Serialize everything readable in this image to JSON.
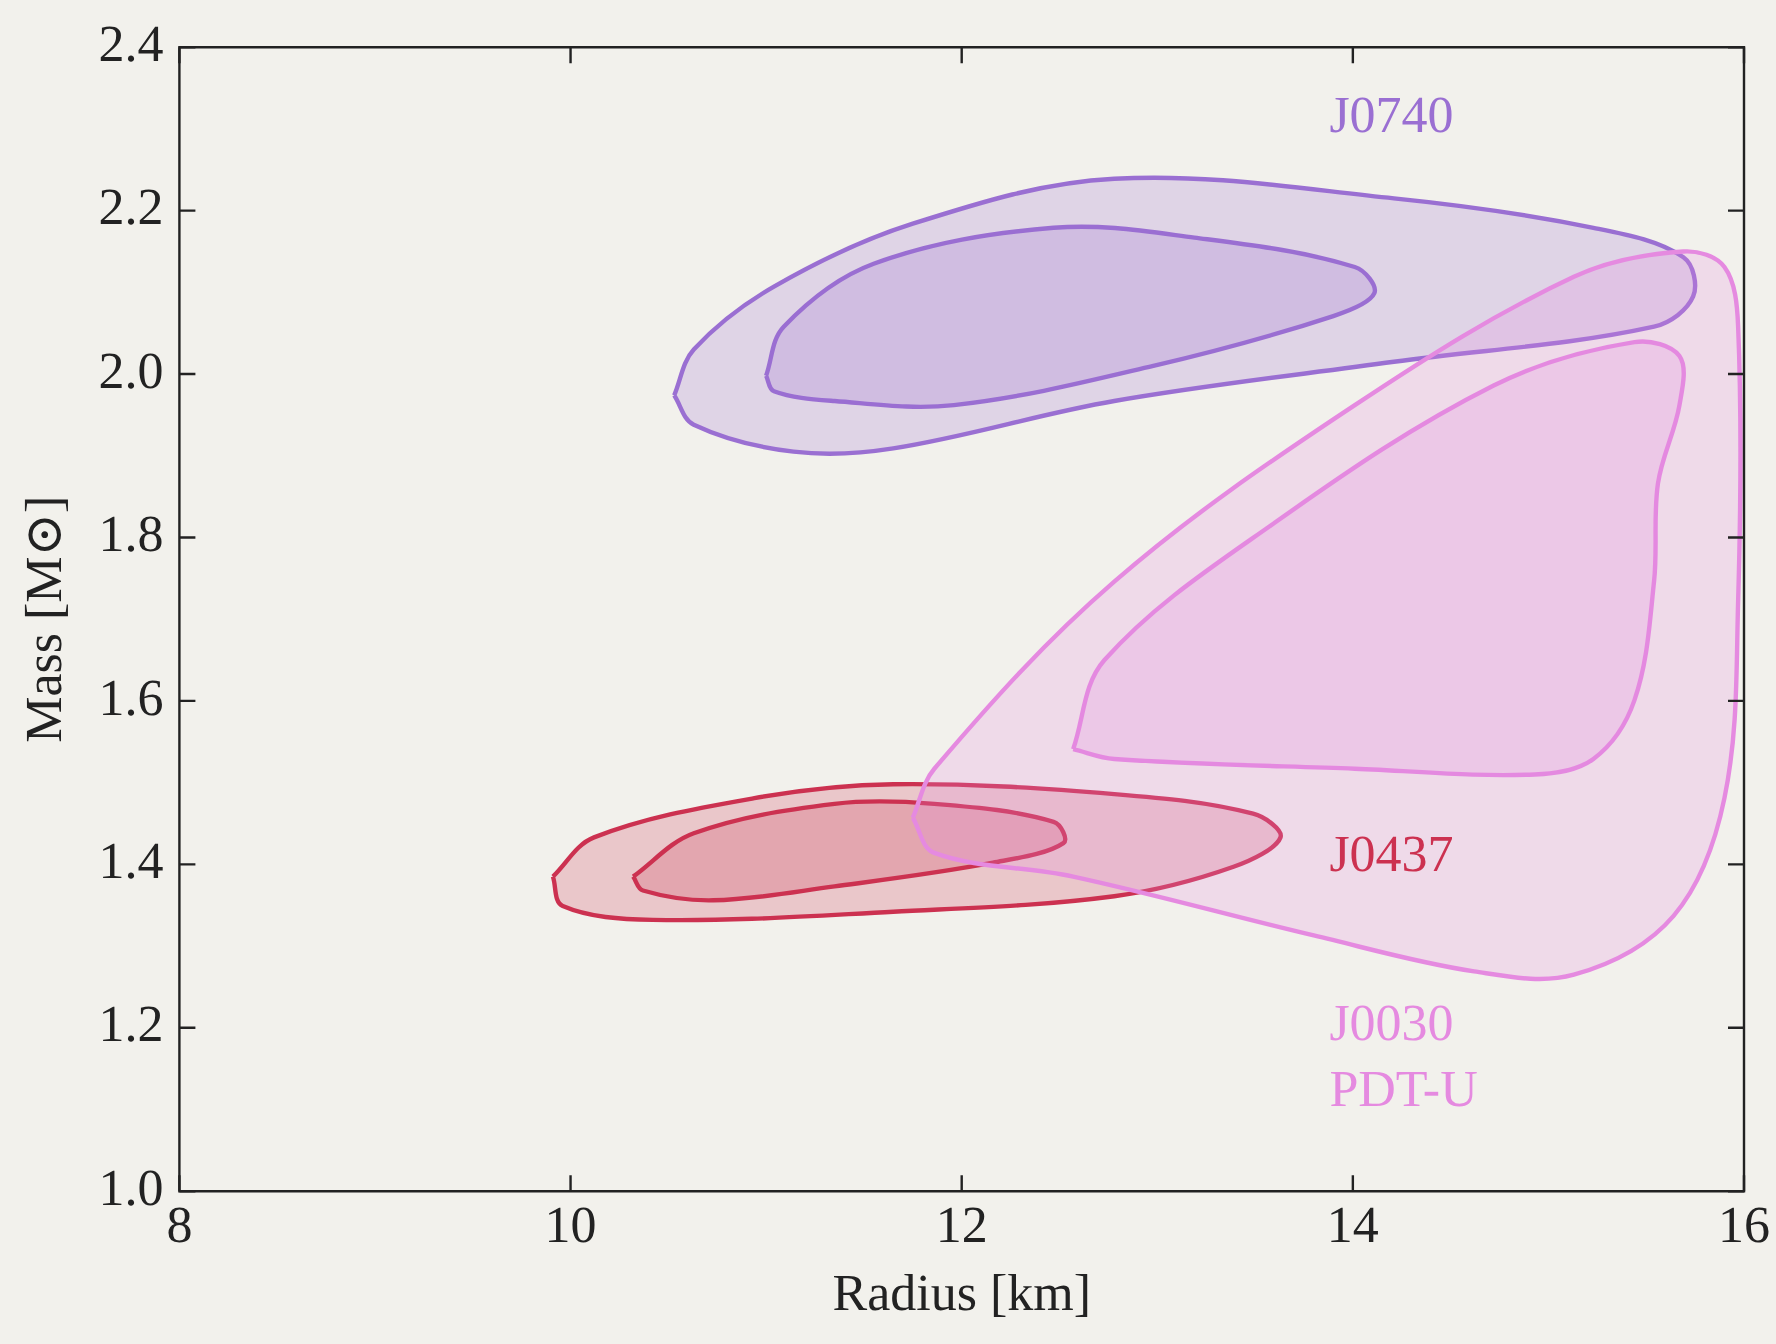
{
  "chart_data": {
    "type": "area",
    "xlabel": "Radius [km]",
    "ylabel": "Mass [M⊙]",
    "xlim": [
      8,
      16
    ],
    "xticks": [
      8,
      10,
      12,
      14,
      16
    ],
    "ylim": [
      1.0,
      2.4
    ],
    "yticks": [
      {
        "value": 1.0,
        "label": "1.0"
      },
      {
        "value": 1.2,
        "label": "1.2"
      },
      {
        "value": 1.4,
        "label": "1.4"
      },
      {
        "value": 1.6,
        "label": "1.6"
      },
      {
        "value": 1.8,
        "label": "1.8"
      },
      {
        "value": 2.0,
        "label": "2.0"
      },
      {
        "value": 2.2,
        "label": "2.2"
      },
      {
        "value": 2.4,
        "label": "2.4"
      }
    ],
    "grid": false,
    "legend": false,
    "series": [
      {
        "name": "J0030 PDT-U",
        "color": "#e58ae0",
        "x": [
          11.75,
          11.86,
          12.78,
          14.01,
          15.13,
          15.69,
          15.9,
          15.97,
          15.97,
          15.9,
          15.64,
          15.13,
          14.62,
          13.8,
          12.57,
          11.86
        ],
        "values": [
          1.457,
          1.517,
          1.746,
          1.962,
          2.119,
          2.15,
          2.131,
          2.058,
          1.722,
          1.481,
          1.337,
          1.265,
          1.269,
          1.313,
          1.385,
          1.414
        ]
      },
      {
        "color": "#e58ae0",
        "x": [
          12.57,
          12.73,
          13.6,
          14.72,
          15.44,
          15.67,
          15.67,
          15.56,
          15.54,
          15.44,
          15.23,
          14.93,
          14.01,
          12.78
        ],
        "values": [
          1.541,
          1.65,
          1.818,
          1.986,
          2.039,
          2.022,
          1.962,
          1.866,
          1.746,
          1.601,
          1.529,
          1.51,
          1.517,
          1.529
        ]
      },
      {
        "name": "J0740",
        "color": "#9a6fd2",
        "x": [
          10.53,
          10.63,
          11.04,
          11.75,
          12.78,
          14.21,
          15.23,
          15.69,
          15.74,
          15.54,
          14.21,
          12.78,
          11.65,
          11.14,
          10.63
        ],
        "values": [
          1.974,
          2.03,
          2.107,
          2.184,
          2.239,
          2.215,
          2.179,
          2.143,
          2.095,
          2.058,
          2.015,
          1.967,
          1.909,
          1.905,
          1.938
        ]
      },
      {
        "color": "#9a6fd2",
        "x": [
          11.0,
          11.09,
          11.55,
          12.47,
          13.19,
          14.01,
          14.11,
          13.9,
          12.98,
          11.96,
          11.35,
          11.04
        ],
        "values": [
          1.998,
          2.058,
          2.135,
          2.179,
          2.167,
          2.131,
          2.099,
          2.071,
          2.01,
          1.962,
          1.967,
          1.979
        ]
      },
      {
        "name": "J0437",
        "color": "#cc3150",
        "x": [
          9.91,
          10.12,
          10.94,
          11.65,
          12.78,
          13.49,
          13.63,
          13.39,
          12.78,
          11.65,
          10.42,
          9.96
        ],
        "values": [
          1.385,
          1.433,
          1.481,
          1.498,
          1.486,
          1.462,
          1.433,
          1.397,
          1.361,
          1.342,
          1.332,
          1.349
        ]
      },
      {
        "color": "#cc3150",
        "x": [
          10.32,
          10.63,
          11.35,
          11.86,
          12.47,
          12.52,
          12.16,
          11.35,
          10.73,
          10.37
        ],
        "values": [
          1.385,
          1.438,
          1.474,
          1.474,
          1.452,
          1.426,
          1.402,
          1.373,
          1.356,
          1.368
        ]
      }
    ]
  }
}
